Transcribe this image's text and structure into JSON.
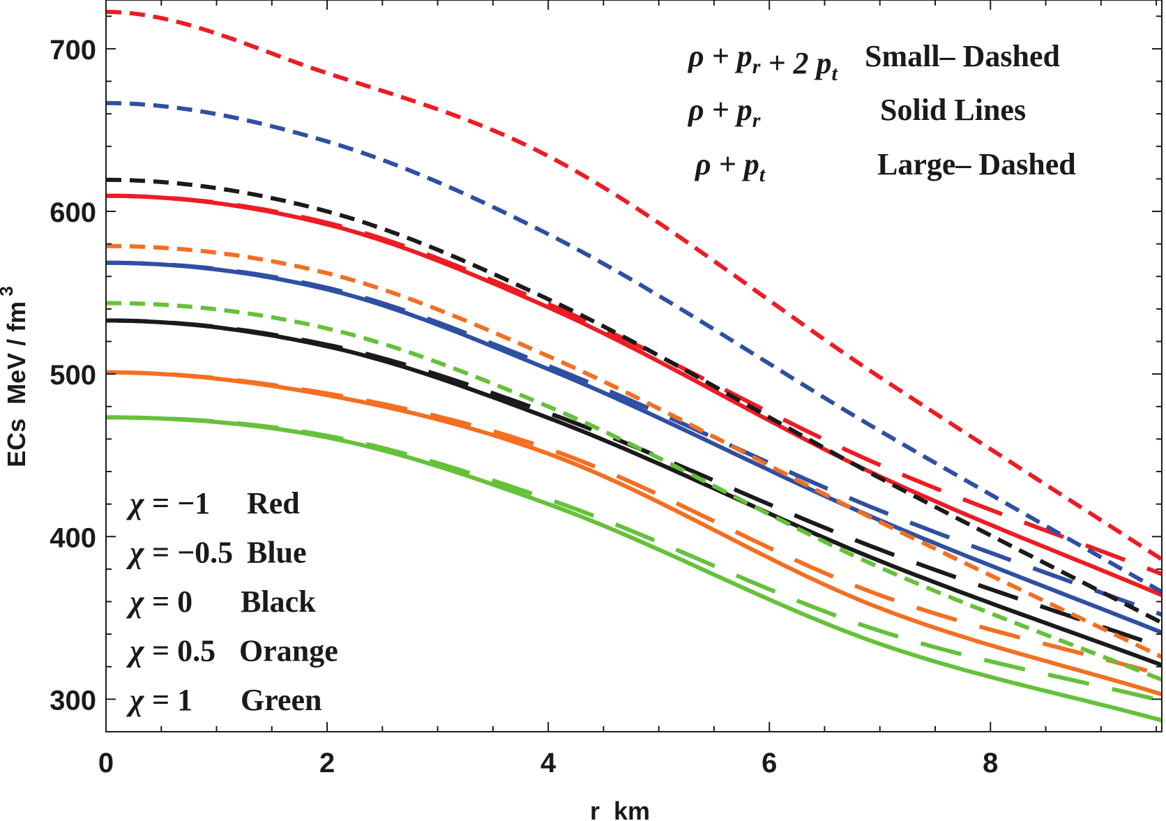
{
  "chart_data": {
    "type": "line",
    "title": "",
    "xlabel": "r  km",
    "ylabel": "ECs  MeV / fm",
    "ylabel_superscript": "3",
    "xlim": [
      0,
      9.55
    ],
    "ylim": [
      280,
      730
    ],
    "xticks": [
      0,
      2,
      4,
      6,
      8
    ],
    "xtick_labels": [
      "0",
      "2",
      "4",
      "6",
      "8"
    ],
    "yticks": [
      300,
      400,
      500,
      600,
      700
    ],
    "ytick_labels": [
      "300",
      "400",
      "500",
      "600",
      "700"
    ],
    "x_minor_step": 0.5,
    "y_minor_step": 20,
    "grid": false,
    "x": [
      0,
      2,
      4,
      7,
      9.55
    ],
    "series": [
      {
        "name": "rho + p_r + 2 p_t, chi = -1",
        "color": "#ed1c24",
        "style": "small-dashed",
        "values": [
          722.7,
          685,
          634,
          498,
          386
        ]
      },
      {
        "name": "rho + p_r + 2 p_t, chi = -0.5",
        "color": "#2f4fa2",
        "style": "small-dashed",
        "values": [
          666.6,
          643,
          586,
          465,
          366
        ]
      },
      {
        "name": "rho + p_r + 2 p_t, chi = 0",
        "color": "#1a1a1a",
        "style": "small-dashed",
        "values": [
          619.4,
          600,
          546,
          436,
          347
        ]
      },
      {
        "name": "rho + p_r + 2 p_t, chi = 0.5",
        "color": "#f36f21",
        "style": "small-dashed",
        "values": [
          578.7,
          562,
          511,
          409,
          326
        ]
      },
      {
        "name": "rho + p_r + 2 p_t, chi = 1",
        "color": "#65c13a",
        "style": "small-dashed",
        "values": [
          543.6,
          528,
          480,
          381,
          312
        ]
      },
      {
        "name": "rho + p_r, chi = -1",
        "color": "#ed1c24",
        "style": "solid",
        "values": [
          609.6,
          592,
          541,
          437,
          364
        ]
      },
      {
        "name": "rho + p_r, chi = -0.5",
        "color": "#2f4fa2",
        "style": "solid",
        "values": [
          568.4,
          552,
          503,
          410,
          341
        ]
      },
      {
        "name": "rho + p_r, chi = 0",
        "color": "#1a1a1a",
        "style": "solid",
        "values": [
          532.9,
          517,
          473,
          385,
          321
        ]
      },
      {
        "name": "rho + p_r, chi = 0.5",
        "color": "#f36f21",
        "style": "solid",
        "values": [
          501.0,
          487,
          451,
          356,
          303
        ]
      },
      {
        "name": "rho + p_r, chi = 1",
        "color": "#65c13a",
        "style": "solid",
        "values": [
          473.3,
          461,
          420,
          334,
          287
        ]
      },
      {
        "name": "rho + p_t, chi = -1",
        "color": "#ed1c24",
        "style": "large-dashed",
        "values": [
          609.6,
          593,
          543,
          444,
          377
        ]
      },
      {
        "name": "rho + p_t, chi = -0.5",
        "color": "#2f4fa2",
        "style": "large-dashed",
        "values": [
          568.4,
          553,
          505,
          416,
          352
        ]
      },
      {
        "name": "rho + p_t, chi = 0",
        "color": "#1a1a1a",
        "style": "large-dashed",
        "values": [
          532.9,
          518,
          476,
          392,
          332
        ]
      },
      {
        "name": "rho + p_t, chi = 0.5",
        "color": "#f36f21",
        "style": "large-dashed",
        "values": [
          501.0,
          488,
          454,
          364,
          315
        ]
      },
      {
        "name": "rho + p_t, chi = 1",
        "color": "#65c13a",
        "style": "large-dashed",
        "values": [
          473.3,
          462,
          423,
          342,
          299
        ]
      }
    ],
    "annotations": {
      "line_style_legend": [
        {
          "expr_parts": [
            [
              "ρ + ",
              ""
            ],
            [
              "p",
              "r"
            ],
            [
              " + 2 ",
              ""
            ],
            [
              "p",
              "t"
            ]
          ],
          "label": "Small– Dashed"
        },
        {
          "expr_parts": [
            [
              "ρ + ",
              ""
            ],
            [
              "p",
              "r"
            ]
          ],
          "label": "Solid Lines"
        },
        {
          "expr_parts": [
            [
              "ρ + ",
              ""
            ],
            [
              "p",
              "t"
            ]
          ],
          "label": "Large– Dashed"
        }
      ],
      "color_legend": [
        {
          "symbol": "χ",
          "value": "= −1",
          "label": "Red"
        },
        {
          "symbol": "χ",
          "value": "= −0.5",
          "label": "Blue"
        },
        {
          "symbol": "χ",
          "value": "= 0",
          "label": "Black"
        },
        {
          "symbol": "χ",
          "value": "= 0.5",
          "label": "Orange"
        },
        {
          "symbol": "χ",
          "value": "= 1",
          "label": "Green"
        }
      ],
      "legend_placement": {
        "line_style": "top-right",
        "color": "bottom-left"
      }
    }
  }
}
